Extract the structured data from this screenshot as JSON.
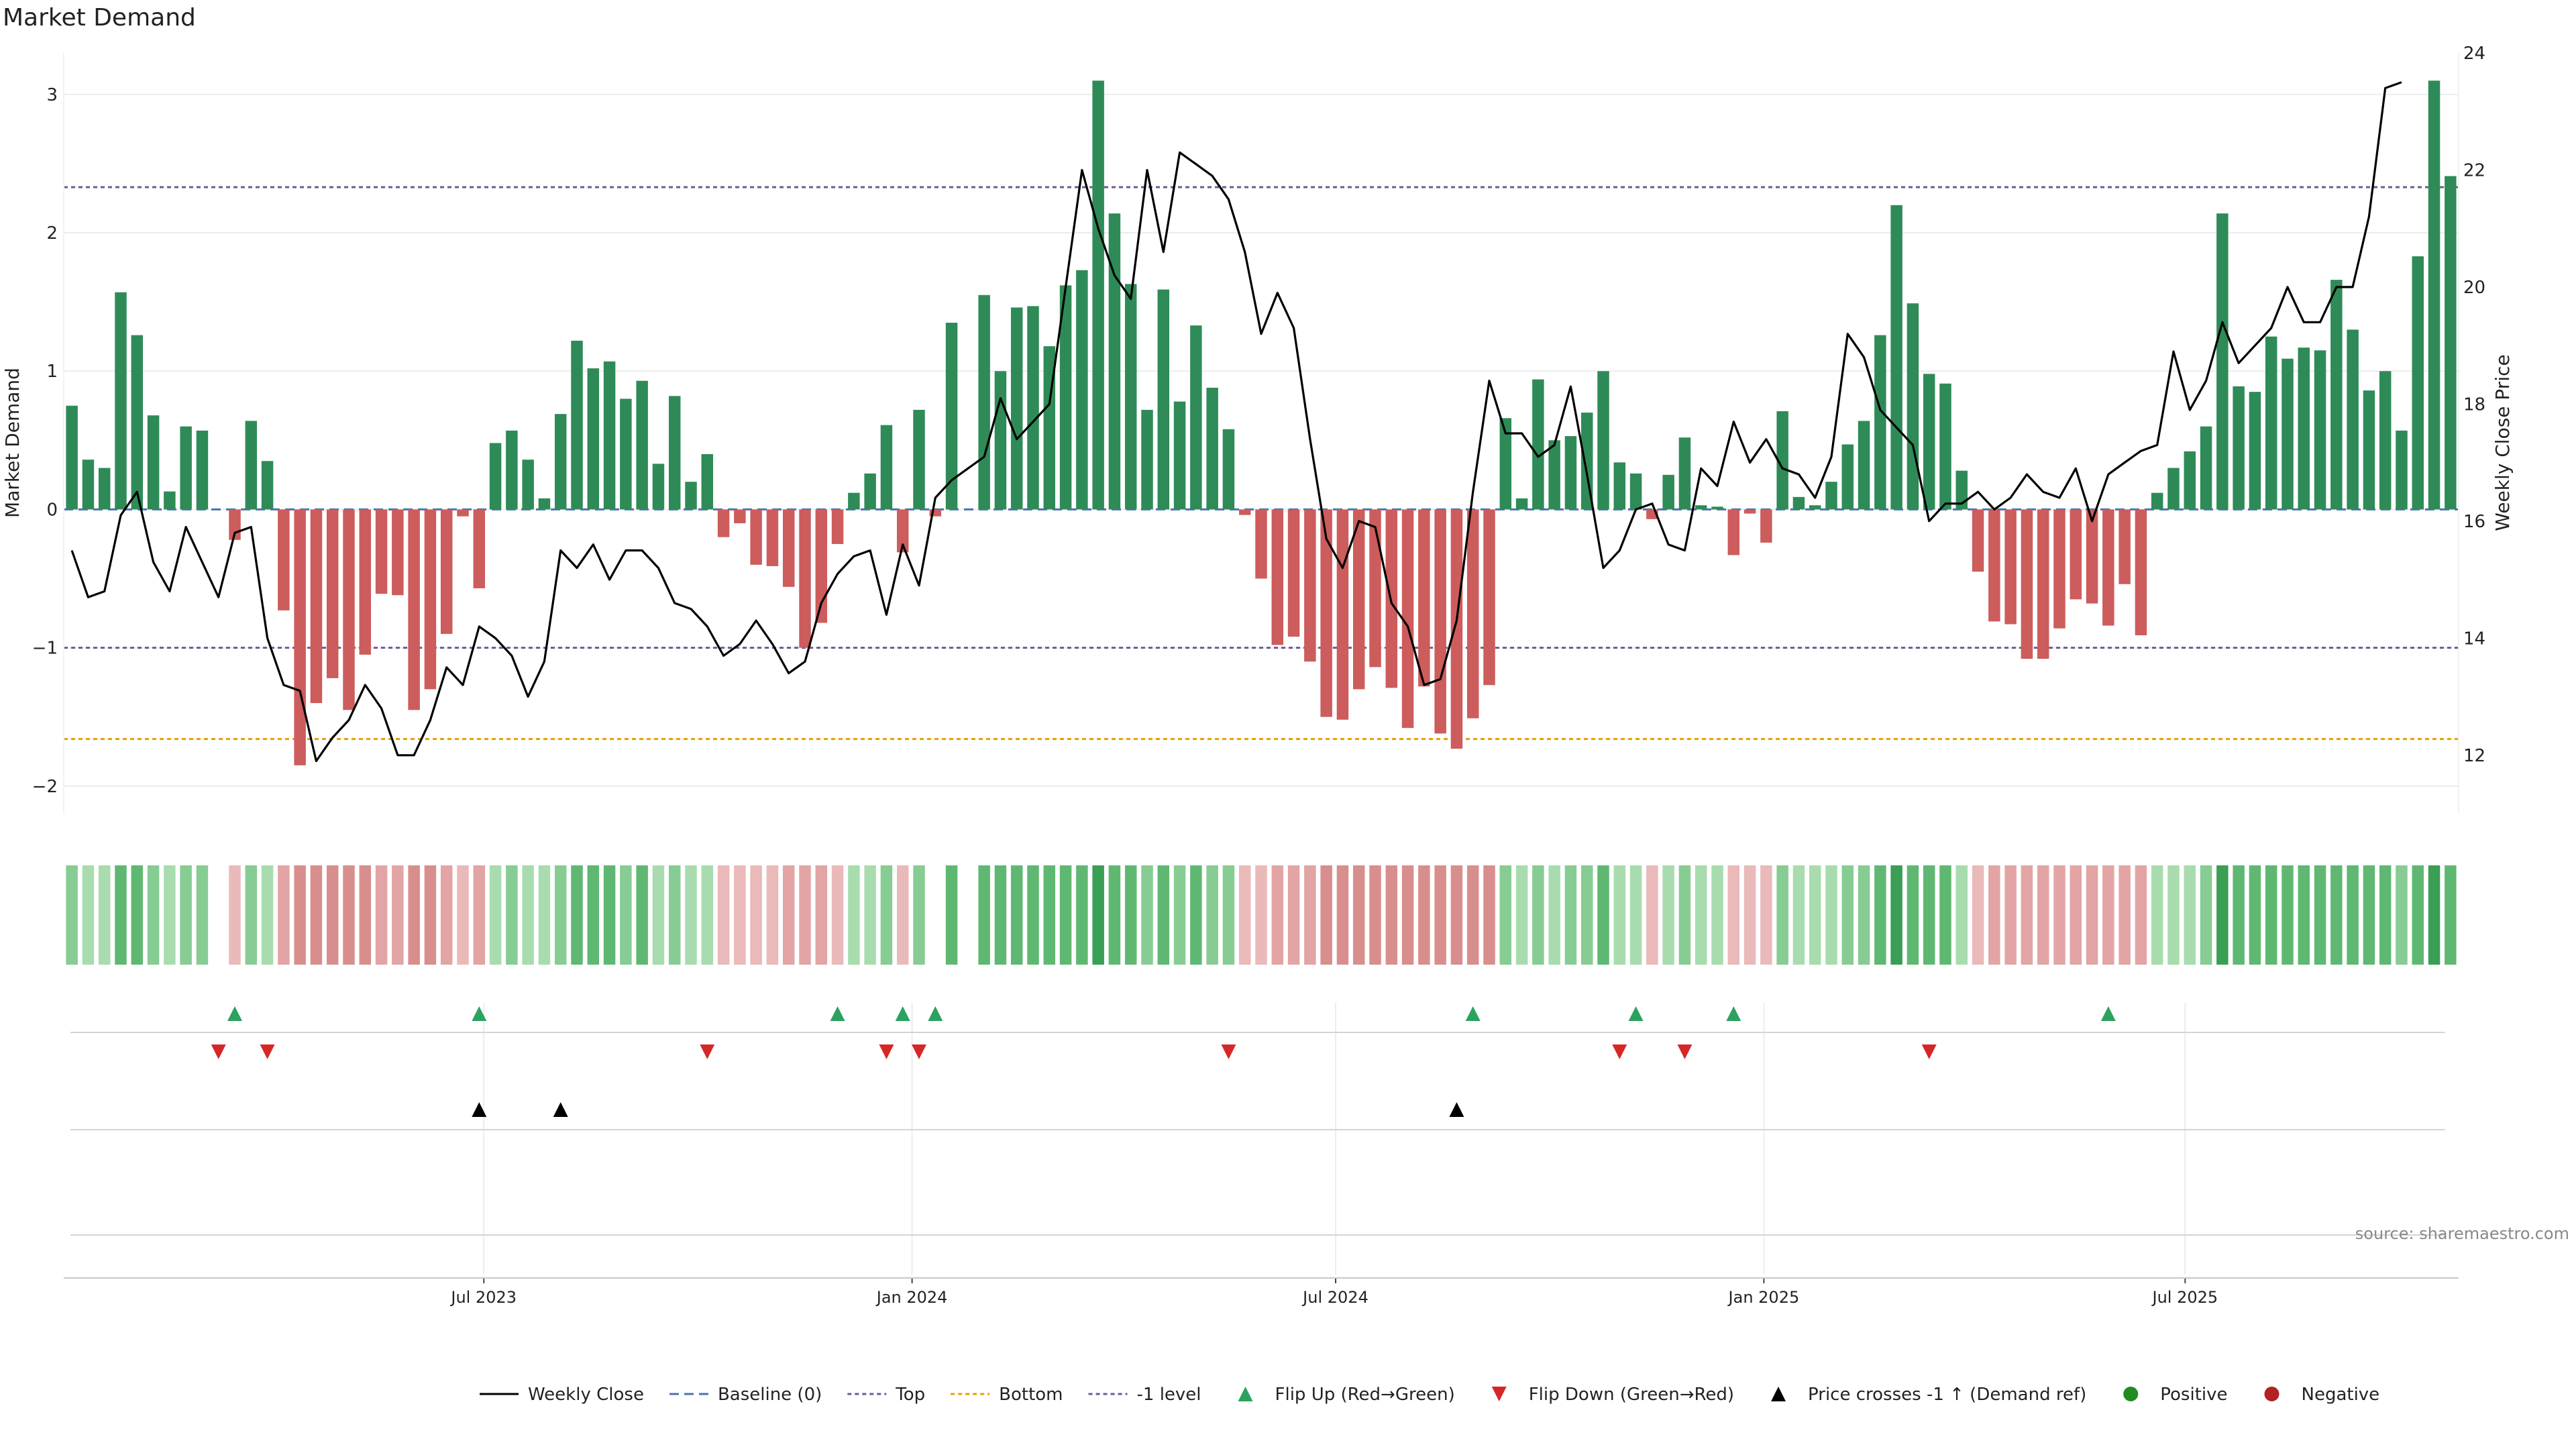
{
  "chart_data": {
    "type": "bar+line",
    "title": "Market Demand",
    "ylabel_left": "Market Demand",
    "ylabel_right": "Weekly Close Price",
    "left_ylim": [
      -2.2,
      3.3
    ],
    "left_ticks": [
      3,
      2,
      1,
      0,
      -1,
      -2
    ],
    "left_tick_labels": [
      "3",
      "2",
      "1",
      "0",
      "−1",
      "−2"
    ],
    "right_ylim": [
      11,
      24
    ],
    "right_ticks": [
      24,
      22,
      20,
      18,
      16,
      14,
      12
    ],
    "right_tick_labels": [
      "24",
      "22",
      "20",
      "18",
      "16",
      "14",
      "12"
    ],
    "x_start": "2023-01-05",
    "x_end": "2025-10-23",
    "x_ticks": [
      "2023-07-01",
      "2024-01-01",
      "2024-07-01",
      "2025-01-01",
      "2025-07-01"
    ],
    "x_tick_labels": [
      "Jul 2023",
      "Jan 2024",
      "Jul 2024",
      "Jan 2025",
      "Jul 2025"
    ],
    "reference_lines": {
      "top": 2.33,
      "bottom": -1.66,
      "minus_one": -1.0,
      "baseline": 0
    },
    "positive_color": "#2e8b57",
    "negative_color": "#cd5c5c",
    "price_color": "#000000",
    "flip_up_color": "#2ca25f",
    "flip_down_color": "#d62728",
    "cross_color": "#000000",
    "demand": [
      0.75,
      0.36,
      0.3,
      1.57,
      1.26,
      0.68,
      0.13,
      0.6,
      0.57,
      0.0,
      -0.22,
      0.64,
      0.35,
      -0.73,
      -1.85,
      -1.4,
      -1.22,
      -1.45,
      -1.05,
      -0.61,
      -0.62,
      -1.45,
      -1.3,
      -0.9,
      -0.05,
      -0.57,
      0.48,
      0.57,
      0.36,
      0.08,
      0.69,
      1.22,
      1.02,
      1.07,
      0.8,
      0.93,
      0.33,
      0.82,
      0.2,
      0.4,
      -0.2,
      -0.1,
      -0.4,
      -0.41,
      -0.56,
      -1.0,
      -0.82,
      -0.25,
      0.12,
      0.26,
      0.61,
      -0.31,
      0.72,
      -0.05,
      1.35,
      0.0,
      1.55,
      1.0,
      1.46,
      1.47,
      1.18,
      1.62,
      1.73,
      3.1,
      2.14,
      1.63,
      0.72,
      1.59,
      0.78,
      1.33,
      0.88,
      0.58,
      -0.04,
      -0.5,
      -0.98,
      -0.92,
      -1.1,
      -1.5,
      -1.52,
      -1.3,
      -1.14,
      -1.29,
      -1.58,
      -1.28,
      -1.62,
      -1.73,
      -1.51,
      -1.27,
      0.66,
      0.08,
      0.94,
      0.5,
      0.53,
      0.7,
      1.0,
      0.34,
      0.26,
      -0.07,
      0.25,
      0.52,
      0.03,
      0.02,
      -0.33,
      -0.03,
      -0.24,
      0.71,
      0.09,
      0.03,
      0.2,
      0.47,
      0.64,
      1.26,
      2.2,
      1.49,
      0.98,
      0.91,
      0.28,
      -0.45,
      -0.81,
      -0.83,
      -1.08,
      -1.08,
      -0.86,
      -0.65,
      -0.68,
      -0.84,
      -0.54,
      -0.91,
      0.12,
      0.3,
      0.42,
      0.6,
      2.14,
      0.89,
      0.85,
      1.25,
      1.09,
      1.17,
      1.15,
      1.66,
      1.3,
      0.86,
      1.0,
      0.57,
      1.83,
      3.1,
      2.41
    ],
    "price": [
      15.5,
      14.7,
      14.8,
      16.1,
      16.5,
      15.3,
      14.8,
      15.9,
      15.3,
      14.7,
      15.8,
      15.9,
      14.0,
      13.2,
      13.1,
      11.9,
      12.3,
      12.6,
      13.2,
      12.8,
      12.0,
      12.0,
      12.6,
      13.5,
      13.2,
      14.2,
      14.0,
      13.7,
      13.0,
      13.6,
      15.5,
      15.2,
      15.6,
      15.0,
      15.5,
      15.5,
      15.2,
      14.6,
      14.5,
      14.2,
      13.7,
      13.9,
      14.3,
      13.9,
      13.4,
      13.6,
      14.6,
      15.1,
      15.4,
      15.5,
      14.4,
      15.6,
      14.9,
      16.4,
      16.7,
      16.9,
      17.1,
      18.1,
      17.4,
      17.7,
      18.0,
      20.0,
      22.0,
      21.0,
      20.2,
      19.8,
      22.0,
      20.6,
      22.3,
      22.1,
      21.9,
      21.5,
      20.6,
      19.2,
      19.9,
      19.3,
      17.4,
      15.7,
      15.2,
      16.0,
      15.9,
      14.6,
      14.2,
      13.2,
      13.3,
      14.3,
      16.5,
      18.4,
      17.5,
      17.5,
      17.1,
      17.3,
      18.3,
      16.8,
      15.2,
      15.5,
      16.2,
      16.3,
      15.6,
      15.5,
      16.9,
      16.6,
      17.7,
      17.0,
      17.4,
      16.9,
      16.8,
      16.4,
      17.1,
      19.2,
      18.8,
      17.9,
      17.6,
      17.3,
      16.0,
      16.3,
      16.3,
      16.5,
      16.2,
      16.4,
      16.8,
      16.5,
      16.4,
      16.9,
      16.0,
      16.8,
      17.0,
      17.2,
      17.3,
      18.9,
      17.9,
      18.4,
      19.4,
      18.7,
      19.0,
      19.3,
      20.0,
      19.4,
      19.4,
      20.0,
      20.0,
      21.2,
      23.4,
      23.5
    ],
    "heat_levels": [
      2,
      1,
      1,
      3,
      3,
      2,
      1,
      2,
      2,
      0,
      -1,
      2,
      1,
      -2,
      -3,
      -3,
      -3,
      -3,
      -3,
      -2,
      -2,
      -3,
      -3,
      -2,
      -1,
      -2,
      1,
      2,
      1,
      1,
      2,
      3,
      3,
      3,
      2,
      3,
      1,
      2,
      1,
      1,
      -1,
      -1,
      -1,
      -1,
      -2,
      -2,
      -2,
      -1,
      1,
      1,
      2,
      -1,
      2,
      0,
      3,
      0,
      3,
      3,
      3,
      3,
      3,
      3,
      3,
      4,
      3,
      3,
      2,
      3,
      2,
      3,
      2,
      2,
      -1,
      -1,
      -2,
      -2,
      -2,
      -3,
      -3,
      -3,
      -3,
      -3,
      -3,
      -3,
      -3,
      -3,
      -3,
      -3,
      2,
      1,
      2,
      1,
      2,
      2,
      3,
      1,
      1,
      -1,
      1,
      2,
      1,
      1,
      -1,
      -1,
      -1,
      2,
      1,
      1,
      1,
      2,
      2,
      3,
      4,
      3,
      3,
      3,
      1,
      -1,
      -2,
      -2,
      -2,
      -2,
      -2,
      -2,
      -2,
      -2,
      -2,
      -2,
      1,
      1,
      1,
      2,
      4,
      3,
      3,
      3,
      3,
      3,
      3,
      3,
      3,
      3,
      3,
      2,
      3,
      4,
      3
    ],
    "flip_up_weeks": [
      10,
      25,
      47,
      51,
      53,
      86,
      96,
      102,
      125
    ],
    "flip_down_weeks": [
      9,
      12,
      39,
      50,
      52,
      71,
      95,
      99,
      114
    ],
    "cross_weeks": [
      25,
      30,
      85
    ],
    "legend": [
      "Weekly Close",
      "Baseline (0)",
      "Top",
      "Bottom",
      "-1 level",
      "Flip Up (Red→Green)",
      "Flip Down (Green→Red)",
      "Price crosses -1 ↑ (Demand ref)",
      "Positive",
      "Negative"
    ],
    "source": "source: sharemaestro.com"
  }
}
